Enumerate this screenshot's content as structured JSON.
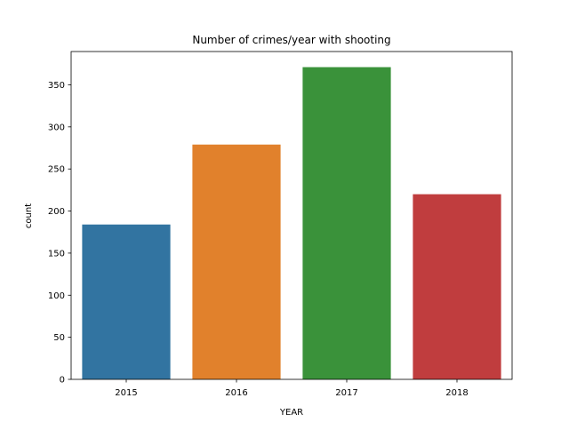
{
  "chart_data": {
    "type": "bar",
    "title": "Number of crimes/year with shooting",
    "xlabel": "YEAR",
    "ylabel": "count",
    "categories": [
      "2015",
      "2016",
      "2017",
      "2018"
    ],
    "values": [
      184,
      279,
      371,
      220
    ],
    "colors": [
      "#3274a1",
      "#e1812c",
      "#3a923a",
      "#c03d3e"
    ],
    "ylim": [
      0,
      389.55
    ],
    "yticks": [
      0,
      50,
      100,
      150,
      200,
      250,
      300,
      350
    ],
    "grid": false,
    "legend": "none"
  }
}
